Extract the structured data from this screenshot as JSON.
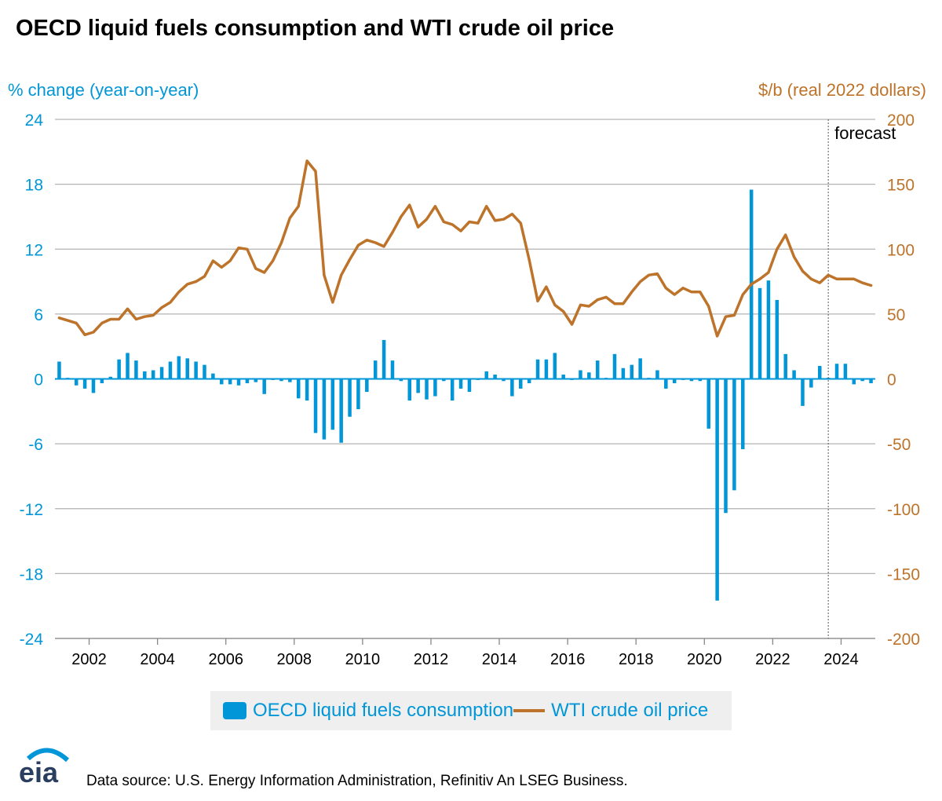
{
  "title": "OECD liquid fuels consumption and WTI crude oil price",
  "left_axis_title": "% change (year-on-year)",
  "right_axis_title": "$/b (real 2022 dollars)",
  "forecast_label": "forecast",
  "source": "Data source: U.S. Energy Information Administration, Refinitiv An LSEG Business.",
  "logo_text": "eia",
  "colors": {
    "bars": "#0096d7",
    "line": "#bd732a",
    "grid": "#b3b3b3",
    "zero": "#0096d7"
  },
  "chart_data": {
    "type": "bar+line",
    "left_ylim": [
      -24,
      24
    ],
    "left_ticks": [
      "24",
      "18",
      "12",
      "6",
      "0",
      "-6",
      "-12",
      "-18",
      "-24"
    ],
    "right_ylim": [
      -200,
      200
    ],
    "right_ticks": [
      "200",
      "150",
      "100",
      "50",
      "0",
      "-50",
      "-100",
      "-150",
      "-200"
    ],
    "x_start": 2001.0,
    "x_end": 2025.0,
    "x_ticks": [
      "2002",
      "2004",
      "2006",
      "2008",
      "2010",
      "2012",
      "2014",
      "2016",
      "2018",
      "2020",
      "2022",
      "2024"
    ],
    "x_tick_values": [
      2002,
      2004,
      2006,
      2008,
      2010,
      2012,
      2014,
      2016,
      2018,
      2020,
      2022,
      2024
    ],
    "forecast_start": 2023.625,
    "grid": true,
    "legend_position": "bottom",
    "series": [
      {
        "name": "OECD liquid fuels consumption",
        "type": "bar",
        "axis": "left",
        "x": [
          2001.125,
          2001.375,
          2001.625,
          2001.875,
          2002.125,
          2002.375,
          2002.625,
          2002.875,
          2003.125,
          2003.375,
          2003.625,
          2003.875,
          2004.125,
          2004.375,
          2004.625,
          2004.875,
          2005.125,
          2005.375,
          2005.625,
          2005.875,
          2006.125,
          2006.375,
          2006.625,
          2006.875,
          2007.125,
          2007.375,
          2007.625,
          2007.875,
          2008.125,
          2008.375,
          2008.625,
          2008.875,
          2009.125,
          2009.375,
          2009.625,
          2009.875,
          2010.125,
          2010.375,
          2010.625,
          2010.875,
          2011.125,
          2011.375,
          2011.625,
          2011.875,
          2012.125,
          2012.375,
          2012.625,
          2012.875,
          2013.125,
          2013.375,
          2013.625,
          2013.875,
          2014.125,
          2014.375,
          2014.625,
          2014.875,
          2015.125,
          2015.375,
          2015.625,
          2015.875,
          2016.125,
          2016.375,
          2016.625,
          2016.875,
          2017.125,
          2017.375,
          2017.625,
          2017.875,
          2018.125,
          2018.375,
          2018.625,
          2018.875,
          2019.125,
          2019.375,
          2019.625,
          2019.875,
          2020.125,
          2020.375,
          2020.625,
          2020.875,
          2021.125,
          2021.375,
          2021.625,
          2021.875,
          2022.125,
          2022.375,
          2022.625,
          2022.875,
          2023.125,
          2023.375,
          2023.625,
          2023.875,
          2024.125,
          2024.375,
          2024.625,
          2024.875
        ],
        "values": [
          1.6,
          0.1,
          -0.6,
          -0.9,
          -1.3,
          -0.4,
          0.2,
          1.8,
          2.4,
          1.7,
          0.7,
          0.8,
          1.1,
          1.6,
          2.1,
          1.9,
          1.6,
          1.3,
          0.5,
          -0.5,
          -0.5,
          -0.6,
          -0.4,
          -0.3,
          -1.4,
          -0.1,
          -0.2,
          -0.3,
          -1.8,
          -2.0,
          -5.0,
          -5.6,
          -4.7,
          -5.9,
          -3.5,
          -2.8,
          -1.2,
          1.7,
          3.6,
          1.7,
          -0.2,
          -2.0,
          -1.3,
          -1.9,
          -1.6,
          -0.2,
          -2.0,
          -0.9,
          -1.2,
          -0.1,
          0.7,
          0.4,
          -0.2,
          -1.6,
          -0.9,
          -0.4,
          1.8,
          1.8,
          2.4,
          0.4,
          -0.1,
          0.8,
          0.6,
          1.7,
          0.1,
          2.3,
          1.0,
          1.3,
          1.9,
          0.1,
          0.8,
          -0.9,
          -0.4,
          -0.1,
          -0.2,
          -0.2,
          -4.6,
          -20.5,
          -12.4,
          -10.3,
          -6.5,
          17.5,
          8.4,
          9.1,
          7.3,
          2.3,
          0.8,
          -2.5,
          -0.8,
          1.2,
          0.1,
          1.4,
          1.4,
          -0.5,
          -0.2,
          -0.4
        ]
      },
      {
        "name": "WTI crude oil price",
        "type": "line",
        "axis": "right",
        "x": [
          2001.125,
          2001.375,
          2001.625,
          2001.875,
          2002.125,
          2002.375,
          2002.625,
          2002.875,
          2003.125,
          2003.375,
          2003.625,
          2003.875,
          2004.125,
          2004.375,
          2004.625,
          2004.875,
          2005.125,
          2005.375,
          2005.625,
          2005.875,
          2006.125,
          2006.375,
          2006.625,
          2006.875,
          2007.125,
          2007.375,
          2007.625,
          2007.875,
          2008.125,
          2008.375,
          2008.625,
          2008.875,
          2009.125,
          2009.375,
          2009.625,
          2009.875,
          2010.125,
          2010.375,
          2010.625,
          2010.875,
          2011.125,
          2011.375,
          2011.625,
          2011.875,
          2012.125,
          2012.375,
          2012.625,
          2012.875,
          2013.125,
          2013.375,
          2013.625,
          2013.875,
          2014.125,
          2014.375,
          2014.625,
          2014.875,
          2015.125,
          2015.375,
          2015.625,
          2015.875,
          2016.125,
          2016.375,
          2016.625,
          2016.875,
          2017.125,
          2017.375,
          2017.625,
          2017.875,
          2018.125,
          2018.375,
          2018.625,
          2018.875,
          2019.125,
          2019.375,
          2019.625,
          2019.875,
          2020.125,
          2020.375,
          2020.625,
          2020.875,
          2021.125,
          2021.375,
          2021.625,
          2021.875,
          2022.125,
          2022.375,
          2022.625,
          2022.875,
          2023.125,
          2023.375,
          2023.625,
          2023.875,
          2024.125,
          2024.375,
          2024.625,
          2024.875
        ],
        "values": [
          47,
          45,
          43,
          34,
          36,
          43,
          46,
          46,
          54,
          46,
          48,
          49,
          55,
          59,
          67,
          73,
          75,
          79,
          91,
          86,
          91,
          101,
          100,
          85,
          82,
          91,
          105,
          124,
          133,
          168,
          160,
          80,
          59,
          80,
          92,
          103,
          107,
          105,
          102,
          113,
          125,
          134,
          117,
          123,
          133,
          121,
          119,
          114,
          121,
          120,
          133,
          122,
          123,
          127,
          120,
          92,
          60,
          71,
          57,
          52,
          42,
          57,
          56,
          61,
          63,
          58,
          58,
          67,
          75,
          80,
          81,
          70,
          65,
          70,
          67,
          67,
          56,
          33,
          48,
          49,
          65,
          73,
          77,
          82,
          100,
          111,
          94,
          83,
          77,
          74,
          80,
          77,
          77,
          77,
          74,
          72
        ]
      }
    ]
  }
}
